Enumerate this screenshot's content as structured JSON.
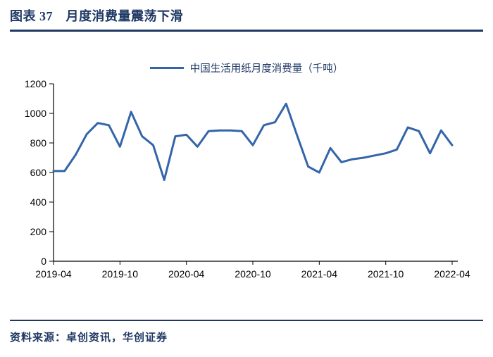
{
  "header": {
    "title": "图表 37　月度消费量震荡下滑"
  },
  "legend": {
    "label": "中国生活用纸月度消费量（千吨）"
  },
  "footer": {
    "source": "资料来源：卓创资讯，华创证券"
  },
  "colors": {
    "accent_navy": "#1F3864",
    "line_blue": "#3465A8",
    "axis_black": "#000000"
  },
  "chart_data": {
    "type": "line",
    "title": "中国生活用纸月度消费量（千吨）",
    "ylabel": "",
    "xlabel": "",
    "ylim": [
      0,
      1200
    ],
    "y_ticks": [
      0,
      200,
      400,
      600,
      800,
      1000,
      1200
    ],
    "grid": false,
    "legend_position": "top-center",
    "x_tick_labels": [
      "2019-04",
      "2019-10",
      "2020-04",
      "2020-10",
      "2021-04",
      "2021-10",
      "2022-04"
    ],
    "x": [
      "2019-04",
      "2019-05",
      "2019-06",
      "2019-07",
      "2019-08",
      "2019-09",
      "2019-10",
      "2019-11",
      "2019-12",
      "2020-01",
      "2020-02",
      "2020-03",
      "2020-04",
      "2020-05",
      "2020-06",
      "2020-07",
      "2020-08",
      "2020-09",
      "2020-10",
      "2020-11",
      "2020-12",
      "2021-01",
      "2021-02",
      "2021-03",
      "2021-04",
      "2021-05",
      "2021-06",
      "2021-07",
      "2021-08",
      "2021-09",
      "2021-10",
      "2021-11",
      "2021-12",
      "2022-01",
      "2022-02",
      "2022-03",
      "2022-04"
    ],
    "values": [
      610,
      610,
      720,
      860,
      935,
      920,
      775,
      1010,
      845,
      785,
      550,
      845,
      855,
      775,
      880,
      885,
      885,
      880,
      785,
      920,
      940,
      1065,
      850,
      640,
      600,
      765,
      670,
      690,
      700,
      715,
      730,
      755,
      905,
      880,
      730,
      885,
      785
    ]
  }
}
